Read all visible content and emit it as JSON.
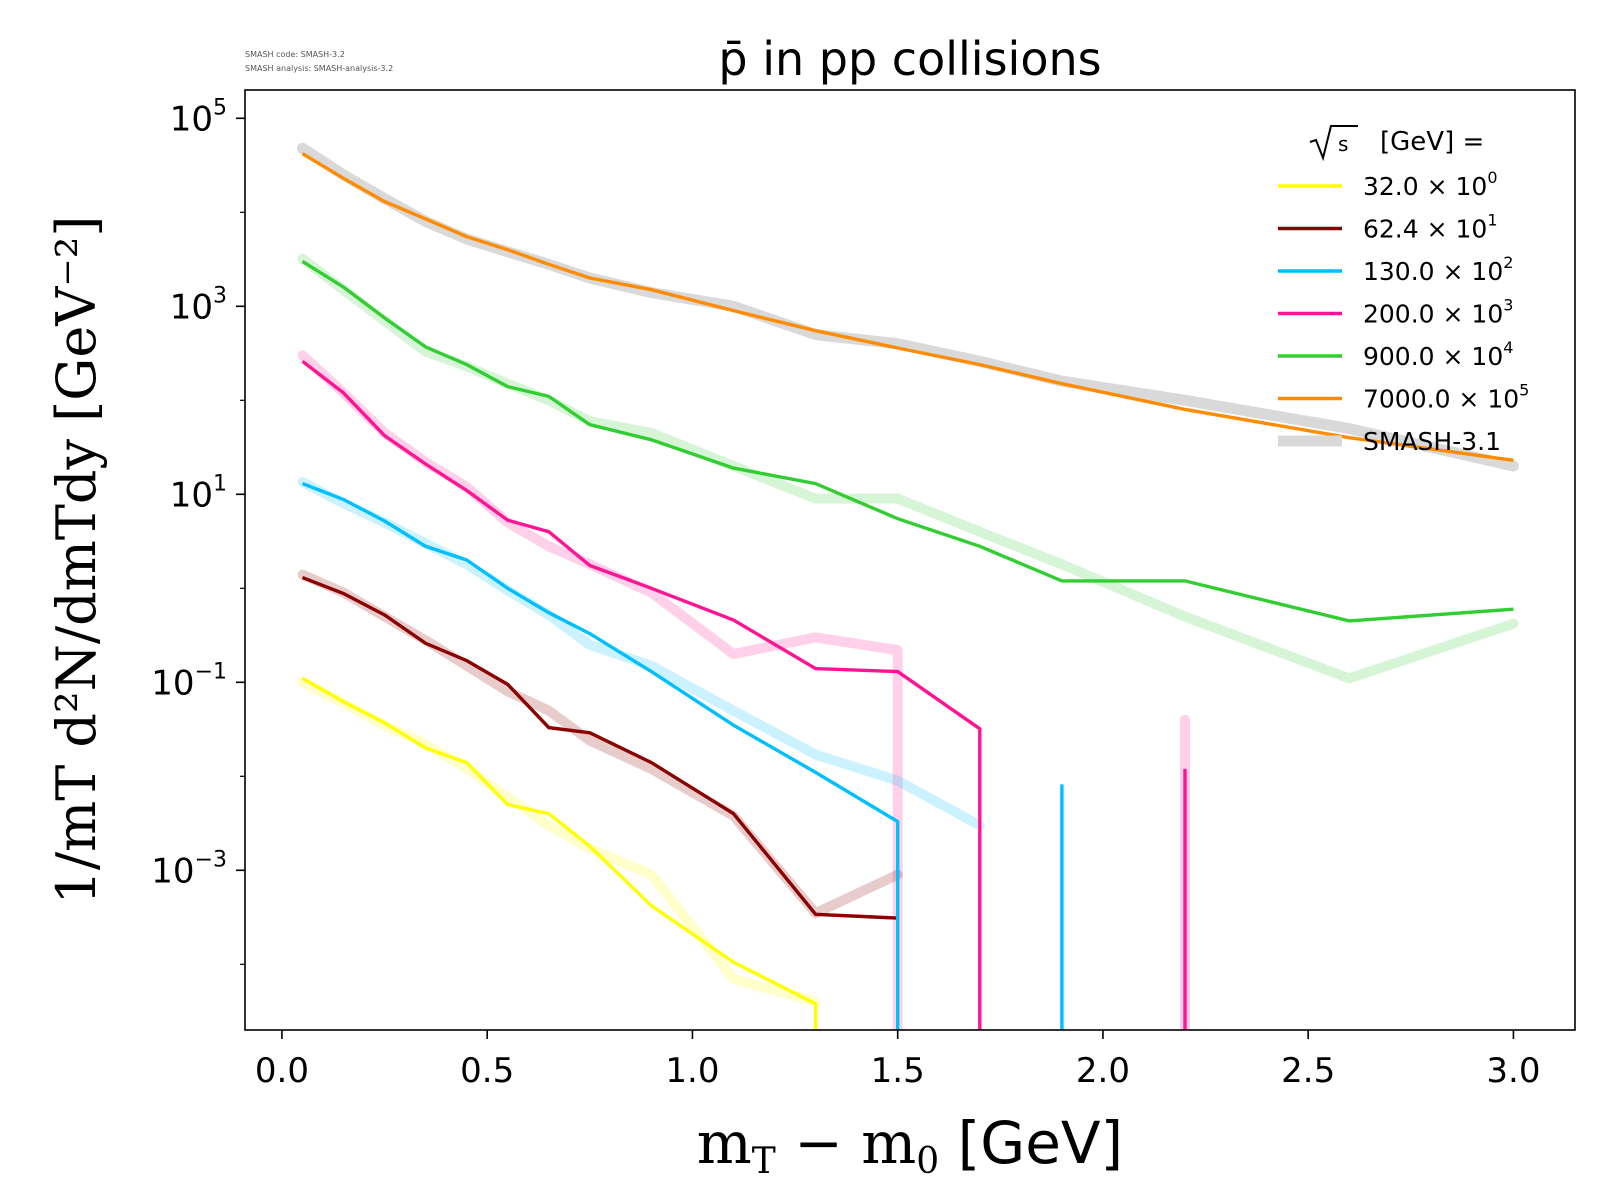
{
  "header": {
    "code_label": "SMASH code:      SMASH-3.2",
    "analysis_label": "SMASH analysis: SMASH-analysis-3.2"
  },
  "chart_data": {
    "type": "line",
    "title": "p̄ in pp collisions",
    "xlabel_main": "m",
    "xlabel_sub": "T",
    "xlabel_rest": " − m",
    "xlabel_sub2": "0",
    "xlabel_unit": " [GeV]",
    "ylabel": "1/mT d²N/dmTdy [GeV⁻²]",
    "yscale": "log",
    "xlim": [
      -0.09,
      3.15
    ],
    "ylim": [
      2e-05,
      200000
    ],
    "xticks": [
      0.0,
      0.5,
      1.0,
      1.5,
      2.0,
      2.5,
      3.0
    ],
    "xtick_labels": [
      "0.0",
      "0.5",
      "1.0",
      "1.5",
      "2.0",
      "2.5",
      "3.0"
    ],
    "yticks": [
      100000,
      1000,
      10,
      0.1,
      0.001
    ],
    "ytick_mantissa": [
      "10",
      "10",
      "10",
      "10",
      "10"
    ],
    "ytick_exponent": [
      "5",
      "3",
      "1",
      "−1",
      "−3"
    ],
    "legend_title": "[GeV] =",
    "legend_title_sqrt": "s",
    "legend_position": "top-right",
    "series": [
      {
        "name": "32.0",
        "scale_exp": "0",
        "color": "#ffff00",
        "x": [
          0.05,
          0.15,
          0.25,
          0.35,
          0.45,
          0.55,
          0.65,
          0.75,
          0.9,
          1.1,
          1.3,
          1.3
        ],
        "y": [
          0.11,
          0.062,
          0.037,
          0.02,
          0.014,
          0.005,
          0.004,
          0.0018,
          0.00042,
          0.000105,
          3.8e-05,
          1e-05
        ]
      },
      {
        "name": "62.4",
        "scale_exp": "1",
        "color": "#8b0000",
        "x": [
          0.05,
          0.15,
          0.25,
          0.35,
          0.45,
          0.55,
          0.65,
          0.75,
          0.9,
          1.1,
          1.3,
          1.5
        ],
        "y": [
          1.3,
          0.88,
          0.52,
          0.26,
          0.17,
          0.095,
          0.033,
          0.029,
          0.014,
          0.004,
          0.00034,
          0.00031
        ]
      },
      {
        "name": "130.0",
        "scale_exp": "2",
        "color": "#00bfff",
        "x": [
          0.05,
          0.15,
          0.25,
          0.35,
          0.45,
          0.55,
          0.65,
          0.75,
          0.9,
          1.1,
          1.3,
          1.5,
          1.5
        ],
        "y": [
          13,
          8.8,
          5.2,
          2.8,
          2.0,
          1.0,
          0.55,
          0.33,
          0.13,
          0.035,
          0.011,
          0.0033,
          1e-05
        ]
      },
      {
        "name": "130.0 spike",
        "color": "#00bfff",
        "x": [
          1.9,
          1.9
        ],
        "y": [
          1e-05,
          0.0082
        ]
      },
      {
        "name": "200.0",
        "scale_exp": "3",
        "color": "#ff1493",
        "x": [
          0.05,
          0.15,
          0.25,
          0.35,
          0.45,
          0.55,
          0.65,
          0.75,
          0.9,
          1.1,
          1.3,
          1.5,
          1.7,
          1.7
        ],
        "y": [
          260,
          120,
          42,
          21,
          11,
          5.3,
          4.0,
          1.75,
          1.0,
          0.46,
          0.14,
          0.13,
          0.032,
          1e-05
        ]
      },
      {
        "name": "200.0 spike",
        "color": "#ff1493",
        "x": [
          2.2,
          2.2
        ],
        "y": [
          1e-05,
          0.012
        ]
      },
      {
        "name": "900.0",
        "scale_exp": "4",
        "color": "#32cd32",
        "x": [
          0.05,
          0.15,
          0.25,
          0.35,
          0.45,
          0.55,
          0.65,
          0.75,
          0.9,
          1.1,
          1.3,
          1.5,
          1.7,
          1.9,
          2.2,
          2.6,
          3.0
        ],
        "y": [
          3000,
          1600,
          750,
          370,
          240,
          140,
          110,
          55,
          38,
          19,
          13,
          5.5,
          2.8,
          1.2,
          1.2,
          0.45,
          0.6
        ]
      },
      {
        "name": "7000.0",
        "scale_exp": "5",
        "color": "#ff8c00",
        "x": [
          0.05,
          0.15,
          0.25,
          0.35,
          0.45,
          0.55,
          0.65,
          0.75,
          0.9,
          1.1,
          1.3,
          1.5,
          1.7,
          1.9,
          2.2,
          2.6,
          3.0
        ],
        "y": [
          42000,
          23000,
          13000,
          8500,
          5500,
          4000,
          2800,
          2000,
          1500,
          900,
          550,
          360,
          240,
          150,
          80,
          40,
          23
        ]
      }
    ],
    "reference_series": [
      {
        "name": "SMASH-3.1",
        "color": "#d9d9d9",
        "x": [
          0.05,
          0.15,
          0.25,
          0.35,
          0.45,
          0.55,
          0.65,
          0.75,
          0.9,
          1.1,
          1.3,
          1.5,
          1.7,
          1.9,
          2.2,
          2.6,
          3.0
        ],
        "y": [
          48000,
          25000,
          14000,
          8000,
          5200,
          3800,
          2800,
          2000,
          1400,
          1000,
          500,
          400,
          260,
          160,
          100,
          50,
          20
        ]
      },
      {
        "name": "ref 900.0",
        "color": "#32cd32",
        "x": [
          0.05,
          0.15,
          0.25,
          0.35,
          0.45,
          0.55,
          0.65,
          0.75,
          0.9,
          1.1,
          1.3,
          1.5,
          1.7,
          1.9,
          2.2,
          2.6,
          3.0
        ],
        "y": [
          3200,
          1500,
          700,
          330,
          230,
          150,
          100,
          60,
          45,
          20,
          9,
          9,
          4,
          1.8,
          0.5,
          0.11,
          0.42
        ]
      },
      {
        "name": "ref 200.0",
        "color": "#ff1493",
        "x": [
          0.05,
          0.15,
          0.25,
          0.35,
          0.45,
          0.55,
          0.65,
          0.75,
          0.9,
          1.1,
          1.3,
          1.5,
          1.5
        ],
        "y": [
          300,
          120,
          45,
          22,
          12,
          5,
          2.8,
          1.8,
          0.9,
          0.2,
          0.3,
          0.22,
          1e-05
        ]
      },
      {
        "name": "ref 200.0 spike",
        "color": "#ff1493",
        "x": [
          2.2,
          2.2
        ],
        "y": [
          1e-05,
          0.04
        ]
      },
      {
        "name": "ref 130.0",
        "color": "#00bfff",
        "x": [
          0.05,
          0.15,
          0.25,
          0.35,
          0.45,
          0.55,
          0.65,
          0.75,
          0.9,
          1.1,
          1.3,
          1.5,
          1.7
        ],
        "y": [
          13.5,
          8,
          5,
          3,
          1.8,
          0.95,
          0.52,
          0.25,
          0.15,
          0.05,
          0.017,
          0.009,
          0.003
        ]
      },
      {
        "name": "ref 62.4",
        "color": "#8b0000",
        "x": [
          0.05,
          0.15,
          0.25,
          0.35,
          0.45,
          0.55,
          0.65,
          0.75,
          0.9,
          1.1,
          1.3,
          1.5
        ],
        "y": [
          1.4,
          0.9,
          0.5,
          0.28,
          0.15,
          0.08,
          0.05,
          0.024,
          0.012,
          0.0038,
          0.00035,
          0.0009
        ]
      },
      {
        "name": "ref 32.0",
        "color": "#ffff00",
        "x": [
          0.05,
          0.15,
          0.25,
          0.35,
          0.45,
          0.55,
          0.65,
          0.75,
          0.9,
          1.1,
          1.3
        ],
        "y": [
          0.1,
          0.06,
          0.035,
          0.022,
          0.012,
          0.006,
          0.003,
          0.0017,
          0.0009,
          7e-05,
          4e-05
        ]
      }
    ]
  }
}
